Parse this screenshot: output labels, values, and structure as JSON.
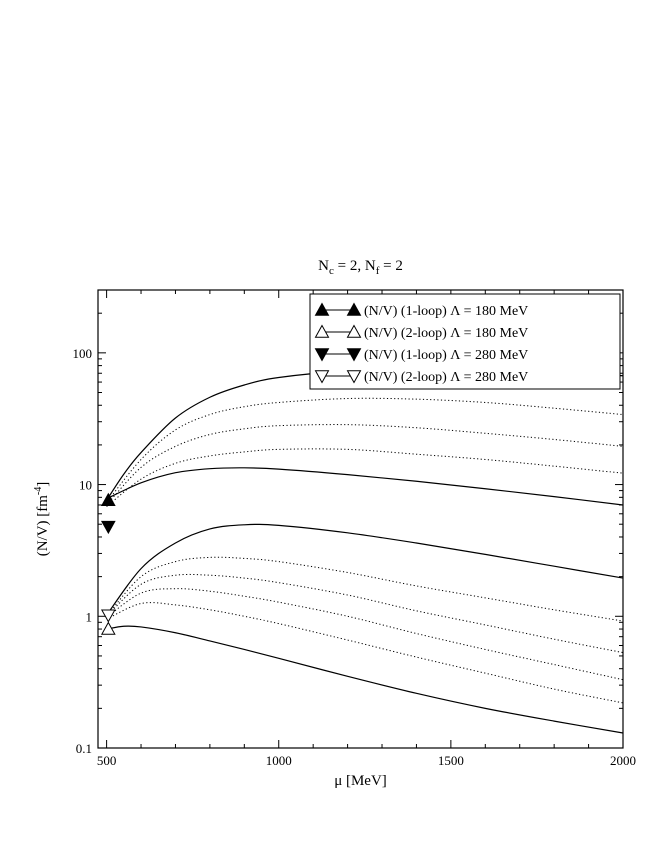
{
  "chart_data": {
    "type": "line",
    "title": {
      "main_1": "N",
      "sub_1": "c",
      "mid": " = 2,  N",
      "sub_2": "f",
      "end": " = 2"
    },
    "xlabel": "μ  [MeV]",
    "ylabel": {
      "text": "(N/V)  [fm",
      "sup": "-4",
      "close": "]"
    },
    "xlim": [
      475,
      2000
    ],
    "ylim": [
      0.1,
      300
    ],
    "yscale": "log",
    "xticks": [
      500,
      1000,
      1500,
      2000
    ],
    "yticks": [
      0.1,
      1,
      10,
      100
    ],
    "xtick_labels": [
      "500",
      "1000",
      "1500",
      "2000"
    ],
    "ytick_labels": [
      "0.1",
      "1",
      "10",
      "100"
    ],
    "grid": false,
    "legend_position": "top-right",
    "legend": [
      {
        "label": "(N/V) (1-loop) Λ = 180 MeV",
        "marker": "triangle-up",
        "filled": true
      },
      {
        "label": "(N/V) (2-loop) Λ = 180 MeV",
        "marker": "triangle-up",
        "filled": false
      },
      {
        "label": "(N/V) (1-loop) Λ = 280 MeV",
        "marker": "triangle-down",
        "filled": true
      },
      {
        "label": "(N/V) (2-loop) Λ = 280 MeV",
        "marker": "triangle-down",
        "filled": false
      }
    ],
    "series": [
      {
        "style": "solid",
        "x": [
          500,
          550,
          600,
          700,
          800,
          900,
          1000,
          1200,
          1400,
          1600,
          1800,
          2000
        ],
        "y": [
          7.6,
          12,
          17.5,
          32,
          46,
          57,
          65,
          73,
          75,
          74,
          71,
          67
        ]
      },
      {
        "style": "dotted",
        "x": [
          500,
          600,
          700,
          800,
          900,
          1000,
          1200,
          1400,
          1600,
          1800,
          2000
        ],
        "y": [
          7.3,
          15.5,
          26,
          34,
          39,
          42,
          45,
          44.5,
          42,
          38,
          34
        ]
      },
      {
        "style": "dotted",
        "x": [
          500,
          600,
          700,
          800,
          900,
          1000,
          1200,
          1400,
          1600,
          1800,
          2000
        ],
        "y": [
          7.0,
          13.5,
          19.5,
          24,
          26.5,
          28,
          28.5,
          27,
          24.5,
          22,
          19.5
        ]
      },
      {
        "style": "dotted",
        "x": [
          500,
          600,
          700,
          800,
          900,
          1000,
          1200,
          1400,
          1600,
          1800,
          2000
        ],
        "y": [
          6.8,
          11,
          14.5,
          16.5,
          17.7,
          18.5,
          18.5,
          17,
          15.5,
          13.8,
          12.2
        ]
      },
      {
        "style": "solid",
        "x": [
          500,
          600,
          700,
          800,
          900,
          1000,
          1200,
          1400,
          1600,
          1800,
          2000
        ],
        "y": [
          7.8,
          10.3,
          12.3,
          13.2,
          13.4,
          13.1,
          11.9,
          10.6,
          9.3,
          8.1,
          7.0
        ]
      },
      {
        "style": "solid",
        "x": [
          500,
          600,
          700,
          800,
          900,
          1000,
          1200,
          1400,
          1600,
          1800,
          2000
        ],
        "y": [
          1.02,
          2.3,
          3.6,
          4.6,
          4.95,
          4.9,
          4.3,
          3.6,
          2.95,
          2.4,
          1.95
        ]
      },
      {
        "style": "dotted",
        "x": [
          500,
          600,
          700,
          800,
          900,
          1000,
          1200,
          1400,
          1600,
          1800,
          2000
        ],
        "y": [
          1.0,
          2.0,
          2.6,
          2.8,
          2.75,
          2.6,
          2.15,
          1.7,
          1.38,
          1.12,
          0.92
        ]
      },
      {
        "style": "dotted",
        "x": [
          500,
          600,
          700,
          800,
          900,
          1000,
          1200,
          1400,
          1600,
          1800,
          2000
        ],
        "y": [
          1.0,
          1.75,
          2.05,
          2.05,
          1.95,
          1.8,
          1.45,
          1.1,
          0.86,
          0.67,
          0.53
        ]
      },
      {
        "style": "dotted",
        "x": [
          500,
          600,
          700,
          800,
          900,
          1000,
          1200,
          1400,
          1600,
          1800,
          2000
        ],
        "y": [
          0.98,
          1.5,
          1.62,
          1.55,
          1.42,
          1.28,
          1.0,
          0.74,
          0.56,
          0.43,
          0.33
        ]
      },
      {
        "style": "dotted",
        "x": [
          500,
          600,
          700,
          800,
          900,
          1000,
          1200,
          1400,
          1600,
          1800,
          2000
        ],
        "y": [
          0.95,
          1.25,
          1.22,
          1.12,
          1.0,
          0.88,
          0.66,
          0.49,
          0.37,
          0.28,
          0.22
        ]
      },
      {
        "style": "solid",
        "x": [
          500,
          550,
          600,
          700,
          800,
          900,
          1000,
          1200,
          1400,
          1600,
          1800,
          2000
        ],
        "y": [
          0.8,
          0.84,
          0.83,
          0.75,
          0.65,
          0.56,
          0.48,
          0.35,
          0.26,
          0.2,
          0.16,
          0.13
        ]
      }
    ],
    "markers": [
      {
        "x": 505,
        "y": 7.6,
        "marker": "triangle-up",
        "filled": true
      },
      {
        "x": 505,
        "y": 0.8,
        "marker": "triangle-up",
        "filled": false
      },
      {
        "x": 505,
        "y": 4.8,
        "marker": "triangle-down",
        "filled": true
      },
      {
        "x": 505,
        "y": 1.02,
        "marker": "triangle-down",
        "filled": false
      }
    ]
  }
}
